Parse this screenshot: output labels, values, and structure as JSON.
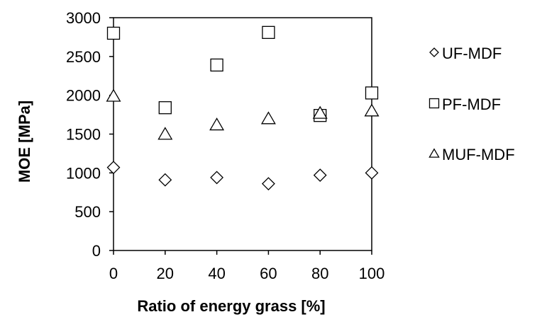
{
  "chart_data": {
    "type": "scatter",
    "title": "",
    "xlabel": "Ratio of energy grass [%]",
    "ylabel": "MOE [MPa]",
    "xlim": [
      0,
      100
    ],
    "ylim": [
      0,
      3000
    ],
    "xticks": [
      "0",
      "20",
      "40",
      "60",
      "80",
      "100"
    ],
    "yticks": [
      "0",
      "500",
      "1000",
      "1500",
      "2000",
      "2500",
      "3000"
    ],
    "grid": false,
    "legend_position": "right",
    "x": [
      0,
      20,
      40,
      60,
      80,
      100
    ],
    "series": [
      {
        "name": "UF-MDF",
        "marker": "diamond",
        "values": [
          1070,
          910,
          940,
          860,
          970,
          1000
        ]
      },
      {
        "name": "PF-MDF",
        "marker": "square",
        "values": [
          2800,
          1840,
          2390,
          2810,
          1740,
          2030
        ]
      },
      {
        "name": "MUF-MDF",
        "marker": "triangle",
        "values": [
          1990,
          1500,
          1620,
          1700,
          1770,
          1800
        ]
      }
    ],
    "colors": {
      "marker_stroke": "#000000",
      "marker_fill": "#ffffff",
      "axis": "#000000"
    }
  }
}
